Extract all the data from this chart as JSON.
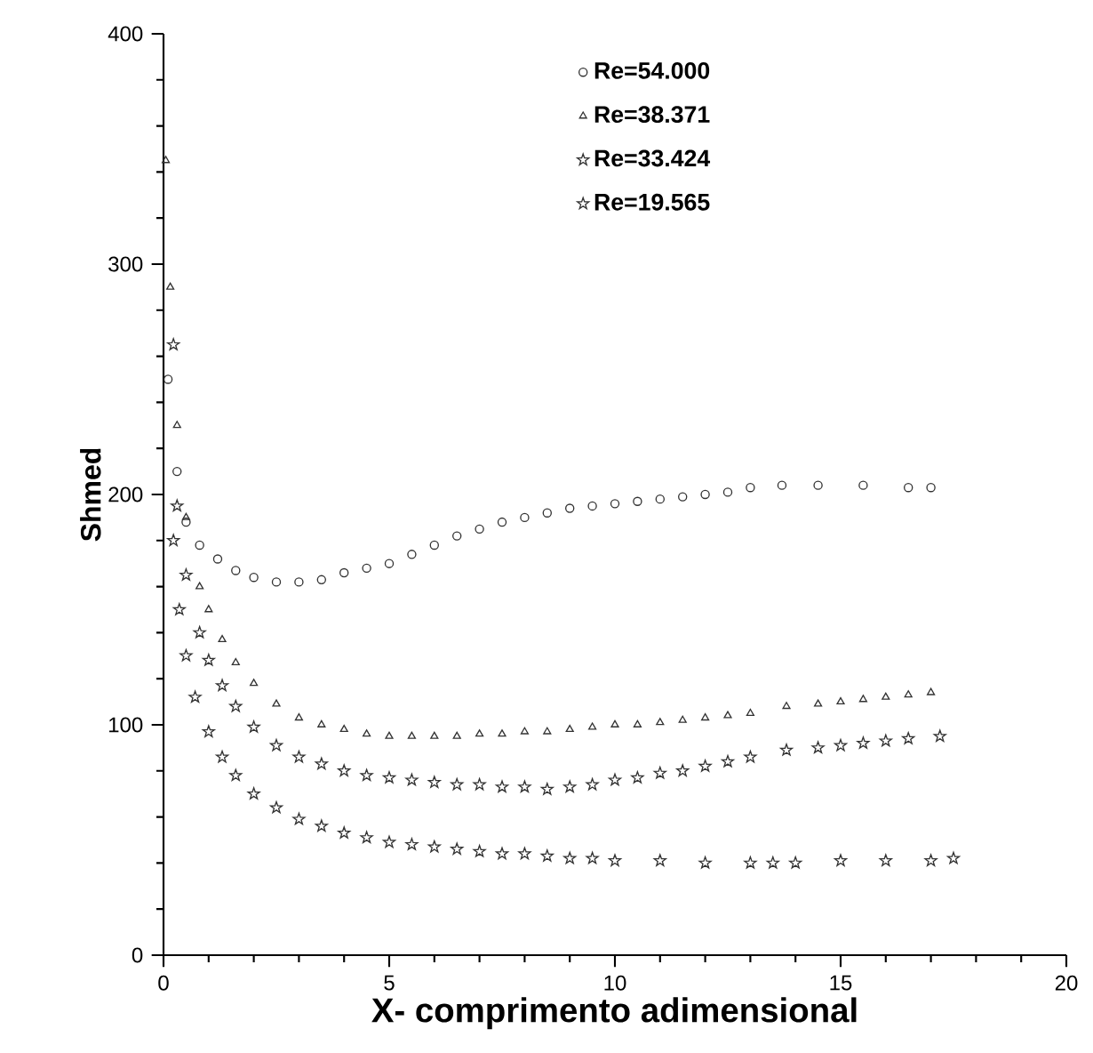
{
  "chart_data": {
    "type": "scatter",
    "xlabel": "X- comprimento adimensional",
    "ylabel": "Shmed",
    "xlim": [
      0,
      20
    ],
    "ylim": [
      0,
      400
    ],
    "xticks": [
      0,
      5,
      10,
      15,
      20
    ],
    "yticks": [
      0,
      100,
      200,
      300,
      400
    ],
    "legend": "top right",
    "series": [
      {
        "name": "Re=54.000",
        "marker": "circle",
        "color": "#333333",
        "x": [
          0.1,
          0.3,
          0.5,
          0.8,
          1.2,
          1.6,
          2.0,
          2.5,
          3.0,
          3.5,
          4.0,
          4.5,
          5.0,
          5.5,
          6.0,
          6.5,
          7.0,
          7.5,
          8.0,
          8.5,
          9.0,
          9.5,
          10.0,
          10.5,
          11.0,
          11.5,
          12.0,
          12.5,
          13.0,
          13.7,
          14.5,
          15.5,
          16.5,
          17.0
        ],
        "values": [
          250,
          210,
          188,
          178,
          172,
          167,
          164,
          162,
          162,
          163,
          166,
          168,
          170,
          174,
          178,
          182,
          185,
          188,
          190,
          192,
          194,
          195,
          196,
          197,
          198,
          199,
          200,
          201,
          203,
          204,
          204,
          204,
          203,
          203
        ]
      },
      {
        "name": "Re=38.371",
        "marker": "triangle",
        "color": "#333333",
        "x": [
          0.05,
          0.15,
          0.3,
          0.5,
          0.8,
          1.0,
          1.3,
          1.6,
          2.0,
          2.5,
          3.0,
          3.5,
          4.0,
          4.5,
          5.0,
          5.5,
          6.0,
          6.5,
          7.0,
          7.5,
          8.0,
          8.5,
          9.0,
          9.5,
          10.0,
          10.5,
          11.0,
          11.5,
          12.0,
          12.5,
          13.0,
          13.8,
          14.5,
          15.0,
          15.5,
          16.0,
          16.5,
          17.0
        ],
        "values": [
          345,
          290,
          230,
          190,
          160,
          150,
          137,
          127,
          118,
          109,
          103,
          100,
          98,
          96,
          95,
          95,
          95,
          95,
          96,
          96,
          97,
          97,
          98,
          99,
          100,
          100,
          101,
          102,
          103,
          104,
          105,
          108,
          109,
          110,
          111,
          112,
          113,
          114
        ]
      },
      {
        "name": "Re=33.424",
        "marker": "star",
        "color": "#333333",
        "x": [
          0.22,
          0.3,
          0.5,
          0.8,
          1.0,
          1.3,
          1.6,
          2.0,
          2.5,
          3.0,
          3.5,
          4.0,
          4.5,
          5.0,
          5.5,
          6.0,
          6.5,
          7.0,
          7.5,
          8.0,
          8.5,
          9.0,
          9.5,
          10.0,
          10.5,
          11.0,
          11.5,
          12.0,
          12.5,
          13.0,
          13.8,
          14.5,
          15.0,
          15.5,
          16.0,
          16.5,
          17.2
        ],
        "values": [
          265,
          195,
          165,
          140,
          128,
          117,
          108,
          99,
          91,
          86,
          83,
          80,
          78,
          77,
          76,
          75,
          74,
          74,
          73,
          73,
          72,
          73,
          74,
          76,
          77,
          79,
          80,
          82,
          84,
          86,
          89,
          90,
          91,
          92,
          93,
          94,
          95
        ]
      },
      {
        "name": "Re=19.565",
        "marker": "star",
        "color": "#333333",
        "x": [
          0.22,
          0.35,
          0.5,
          0.7,
          1.0,
          1.3,
          1.6,
          2.0,
          2.5,
          3.0,
          3.5,
          4.0,
          4.5,
          5.0,
          5.5,
          6.0,
          6.5,
          7.0,
          7.5,
          8.0,
          8.5,
          9.0,
          9.5,
          10.0,
          11.0,
          12.0,
          13.0,
          13.5,
          14.0,
          15.0,
          16.0,
          17.0,
          17.5
        ],
        "values": [
          180,
          150,
          130,
          112,
          97,
          86,
          78,
          70,
          64,
          59,
          56,
          53,
          51,
          49,
          48,
          47,
          46,
          45,
          44,
          44,
          43,
          42,
          42,
          41,
          41,
          40,
          40,
          40,
          40,
          41,
          41,
          41,
          42
        ]
      }
    ]
  }
}
